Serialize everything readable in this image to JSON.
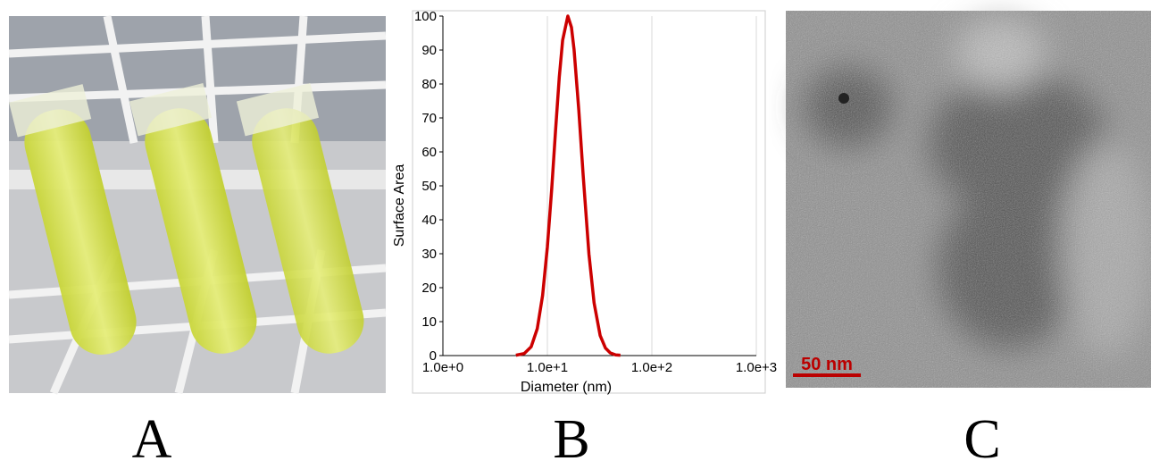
{
  "chart_data": {
    "type": "line",
    "x_label": "Diameter (nm)",
    "y_label": "Surface Area",
    "xlog": true,
    "xlim": [
      1,
      1000
    ],
    "xticks": [
      {
        "value": 1,
        "label": "1.0e+0"
      },
      {
        "value": 10,
        "label": "1.0e+1"
      },
      {
        "value": 100,
        "label": "1.0e+2"
      },
      {
        "value": 1000,
        "label": "1.0e+3"
      }
    ],
    "ylim": [
      0,
      100
    ],
    "yticks": [
      0,
      10,
      20,
      30,
      40,
      50,
      60,
      70,
      80,
      90,
      100
    ],
    "grid": true,
    "x": [
      5,
      6,
      7,
      8,
      9,
      10,
      11,
      12,
      13,
      14,
      15.7,
      17,
      18,
      20,
      22,
      25,
      28,
      32,
      36,
      40,
      45,
      50
    ],
    "series": [
      {
        "color": "#cc0000",
        "values": [
          0.1,
          0.6,
          2.6,
          7.9,
          17.7,
          32,
          49,
          66.7,
          82,
          92.9,
          100,
          96.7,
          90.2,
          72.2,
          53.2,
          29.9,
          15.5,
          5.9,
          2.2,
          0.8,
          0.2,
          0.1
        ]
      }
    ]
  },
  "panels": [
    "A",
    "B",
    "C"
  ],
  "scale_bar": "50 nm"
}
